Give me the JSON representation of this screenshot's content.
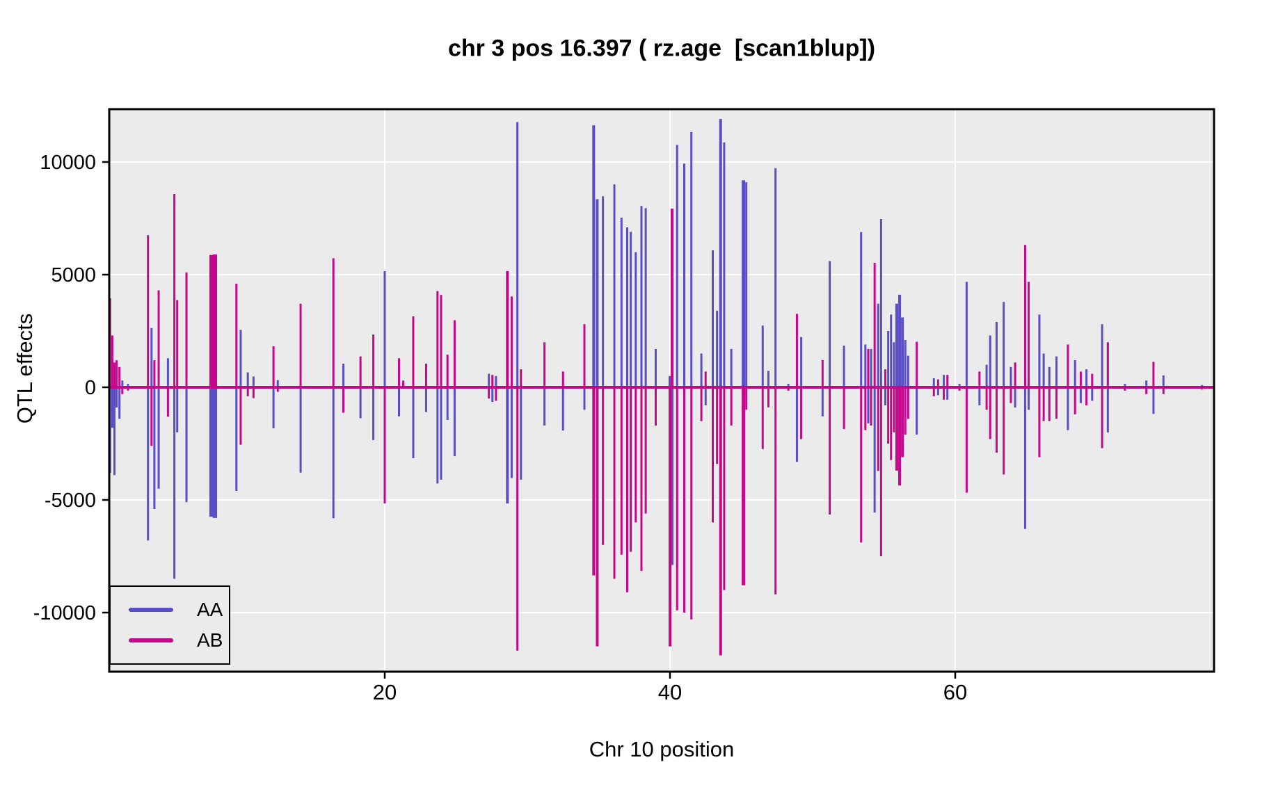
{
  "title": "chr 3 pos 16.397 ( rz.age  [scan1blup])",
  "legend": {
    "items": [
      {
        "label": "AA",
        "color": "#5A4EC6"
      },
      {
        "label": "AB",
        "color": "#C5078A"
      }
    ]
  },
  "colors": {
    "panel_background": "#EBEBEB",
    "gridline": "#FFFFFF",
    "panel_border": "#000000",
    "aa_line": "#5A4EC6",
    "ab_line": "#C5078A"
  },
  "chart_data": {
    "type": "line",
    "title": "chr 3 pos 16.397 ( rz.age  [scan1blup])",
    "xlabel": "Chr 10 position",
    "ylabel": "QTL effects",
    "x_ticks": [
      20,
      40,
      60
    ],
    "y_ticks": [
      10000,
      5000,
      0,
      -5000,
      -10000
    ],
    "xlim": [
      0.68,
      78.15
    ],
    "ylim": [
      -12600,
      12350
    ],
    "grid": true,
    "legend_position": "bottom-left",
    "series": [
      {
        "name": "AA",
        "color": "#5A4EC6"
      },
      {
        "name": "AB",
        "color": "#C5078A"
      }
    ],
    "baseline": 0,
    "spike_format": [
      "position_cM",
      "AA_effect",
      "AB_effect",
      "optional_line_width_px"
    ],
    "spikes": [
      [
        0.72,
        -3800,
        3950,
        4
      ],
      [
        0.9,
        -1800,
        2300
      ],
      [
        1.05,
        -3900,
        1100
      ],
      [
        1.2,
        -900,
        1200
      ],
      [
        1.4,
        -1400,
        900
      ],
      [
        1.6,
        300,
        -300
      ],
      [
        2.0,
        150,
        -150
      ],
      [
        3.4,
        -6800,
        6750
      ],
      [
        3.65,
        2630,
        -2600
      ],
      [
        3.85,
        -5400,
        1200
      ],
      [
        4.15,
        -4500,
        4300
      ],
      [
        4.8,
        1290,
        -1300
      ],
      [
        5.25,
        -8500,
        8580
      ],
      [
        5.45,
        -2000,
        3870
      ],
      [
        6.1,
        -5100,
        5100
      ],
      [
        7.85,
        -5750,
        5870,
        6
      ],
      [
        8.1,
        -5800,
        5900,
        6
      ],
      [
        9.6,
        -4600,
        4600
      ],
      [
        9.9,
        2550,
        -2550
      ],
      [
        10.4,
        660,
        -400
      ],
      [
        10.8,
        480,
        -480
      ],
      [
        12.2,
        -1820,
        1820
      ],
      [
        12.5,
        320,
        -200
      ],
      [
        14.1,
        -3790,
        3710
      ],
      [
        16.4,
        -5810,
        5730
      ],
      [
        17.1,
        1050,
        -1130
      ],
      [
        18.3,
        -1370,
        1370
      ],
      [
        19.2,
        -2340,
        2340
      ],
      [
        20.0,
        5160,
        -5160
      ],
      [
        21.0,
        -1290,
        1290
      ],
      [
        21.3,
        200,
        300
      ],
      [
        22.0,
        -3150,
        3150
      ],
      [
        22.9,
        -1100,
        1050
      ],
      [
        23.7,
        -4270,
        4270
      ],
      [
        23.95,
        -4100,
        4100
      ],
      [
        24.4,
        -1450,
        1450
      ],
      [
        24.9,
        -3060,
        2980
      ],
      [
        27.3,
        600,
        -500
      ],
      [
        27.55,
        -650,
        550
      ],
      [
        27.8,
        500,
        -600
      ],
      [
        28.6,
        -5160,
        5160,
        4
      ],
      [
        28.9,
        -4030,
        4030
      ],
      [
        29.3,
        11770,
        -11690
      ],
      [
        29.55,
        -4100,
        800
      ],
      [
        31.2,
        -1700,
        2000
      ],
      [
        32.5,
        -1920,
        700
      ],
      [
        34.0,
        -1000,
        2800
      ],
      [
        34.65,
        11630,
        -8350,
        4
      ],
      [
        34.9,
        8350,
        -11500,
        4
      ],
      [
        35.3,
        8480,
        -7000
      ],
      [
        36.1,
        9010,
        -8500
      ],
      [
        36.6,
        7530,
        -7430
      ],
      [
        37.0,
        7100,
        -9100
      ],
      [
        37.25,
        6900,
        -7300
      ],
      [
        37.6,
        6000,
        -6000
      ],
      [
        38.0,
        8050,
        -8150
      ],
      [
        38.3,
        7950,
        -5600
      ],
      [
        39.0,
        1700,
        -1700
      ],
      [
        40.0,
        500,
        -11500,
        4
      ],
      [
        40.15,
        -7890,
        7930,
        4
      ],
      [
        40.5,
        10760,
        -9900
      ],
      [
        41.0,
        9930,
        -10000
      ],
      [
        41.5,
        11330,
        -10300
      ],
      [
        42.2,
        1500,
        -1500
      ],
      [
        42.5,
        -800,
        700
      ],
      [
        43.0,
        6080,
        -6000
      ],
      [
        43.3,
        3400,
        -3400
      ],
      [
        43.55,
        11910,
        -11900,
        4
      ],
      [
        43.8,
        10870,
        -9000
      ],
      [
        44.3,
        1700,
        -1700
      ],
      [
        45.15,
        9190,
        -8790,
        5
      ],
      [
        45.35,
        9100,
        -1000
      ],
      [
        46.5,
        2740,
        -2740
      ],
      [
        46.9,
        730,
        -890
      ],
      [
        47.4,
        9730,
        -9190
      ],
      [
        48.3,
        150,
        -150
      ],
      [
        48.9,
        -3310,
        3260
      ],
      [
        49.2,
        2230,
        -2300
      ],
      [
        50.7,
        -1290,
        1210
      ],
      [
        51.2,
        5600,
        -5650
      ],
      [
        52.2,
        1850,
        -1850
      ],
      [
        53.4,
        6890,
        -6890
      ],
      [
        53.7,
        1900,
        -1900
      ],
      [
        53.9,
        -1600,
        1700
      ],
      [
        54.1,
        1700,
        -1700
      ],
      [
        54.35,
        -5560,
        5530
      ],
      [
        54.6,
        3710,
        -3710
      ],
      [
        54.8,
        7470,
        -7500
      ],
      [
        55.1,
        -800,
        800
      ],
      [
        55.3,
        2500,
        -2500
      ],
      [
        55.5,
        3230,
        -3230
      ],
      [
        55.7,
        2000,
        -2000
      ],
      [
        55.9,
        3710,
        -3700,
        4
      ],
      [
        56.1,
        4110,
        -4360,
        4
      ],
      [
        56.3,
        3100,
        -3100,
        4
      ],
      [
        56.5,
        2100,
        -2100
      ],
      [
        56.7,
        1400,
        -1400
      ],
      [
        57.3,
        -2100,
        2020
      ],
      [
        58.5,
        400,
        -400
      ],
      [
        58.8,
        -350,
        350
      ],
      [
        59.2,
        550,
        -550
      ],
      [
        59.45,
        -550,
        550
      ],
      [
        60.3,
        150,
        -150
      ],
      [
        60.8,
        4680,
        -4680
      ],
      [
        61.7,
        -800,
        700
      ],
      [
        62.2,
        1000,
        -1000
      ],
      [
        62.45,
        2300,
        -2300
      ],
      [
        62.9,
        2900,
        -2900
      ],
      [
        63.4,
        3790,
        -3870
      ],
      [
        63.9,
        900,
        -700
      ],
      [
        64.2,
        -900,
        1100
      ],
      [
        64.9,
        -6290,
        6320
      ],
      [
        65.15,
        -1000,
        4680
      ],
      [
        65.9,
        3230,
        -3100
      ],
      [
        66.2,
        1500,
        -1500
      ],
      [
        66.6,
        900,
        -1500
      ],
      [
        67.1,
        1370,
        -1400
      ],
      [
        67.9,
        -1900,
        1900
      ],
      [
        68.4,
        1200,
        -1200
      ],
      [
        68.8,
        -700,
        700
      ],
      [
        69.2,
        800,
        -800
      ],
      [
        69.6,
        -600,
        600
      ],
      [
        70.3,
        2800,
        -2700
      ],
      [
        70.7,
        -2000,
        2000
      ],
      [
        71.9,
        150,
        -150
      ],
      [
        73.4,
        300,
        -300
      ],
      [
        73.9,
        -1180,
        1130
      ],
      [
        74.6,
        530,
        -300
      ],
      [
        77.3,
        100,
        -100
      ]
    ]
  }
}
